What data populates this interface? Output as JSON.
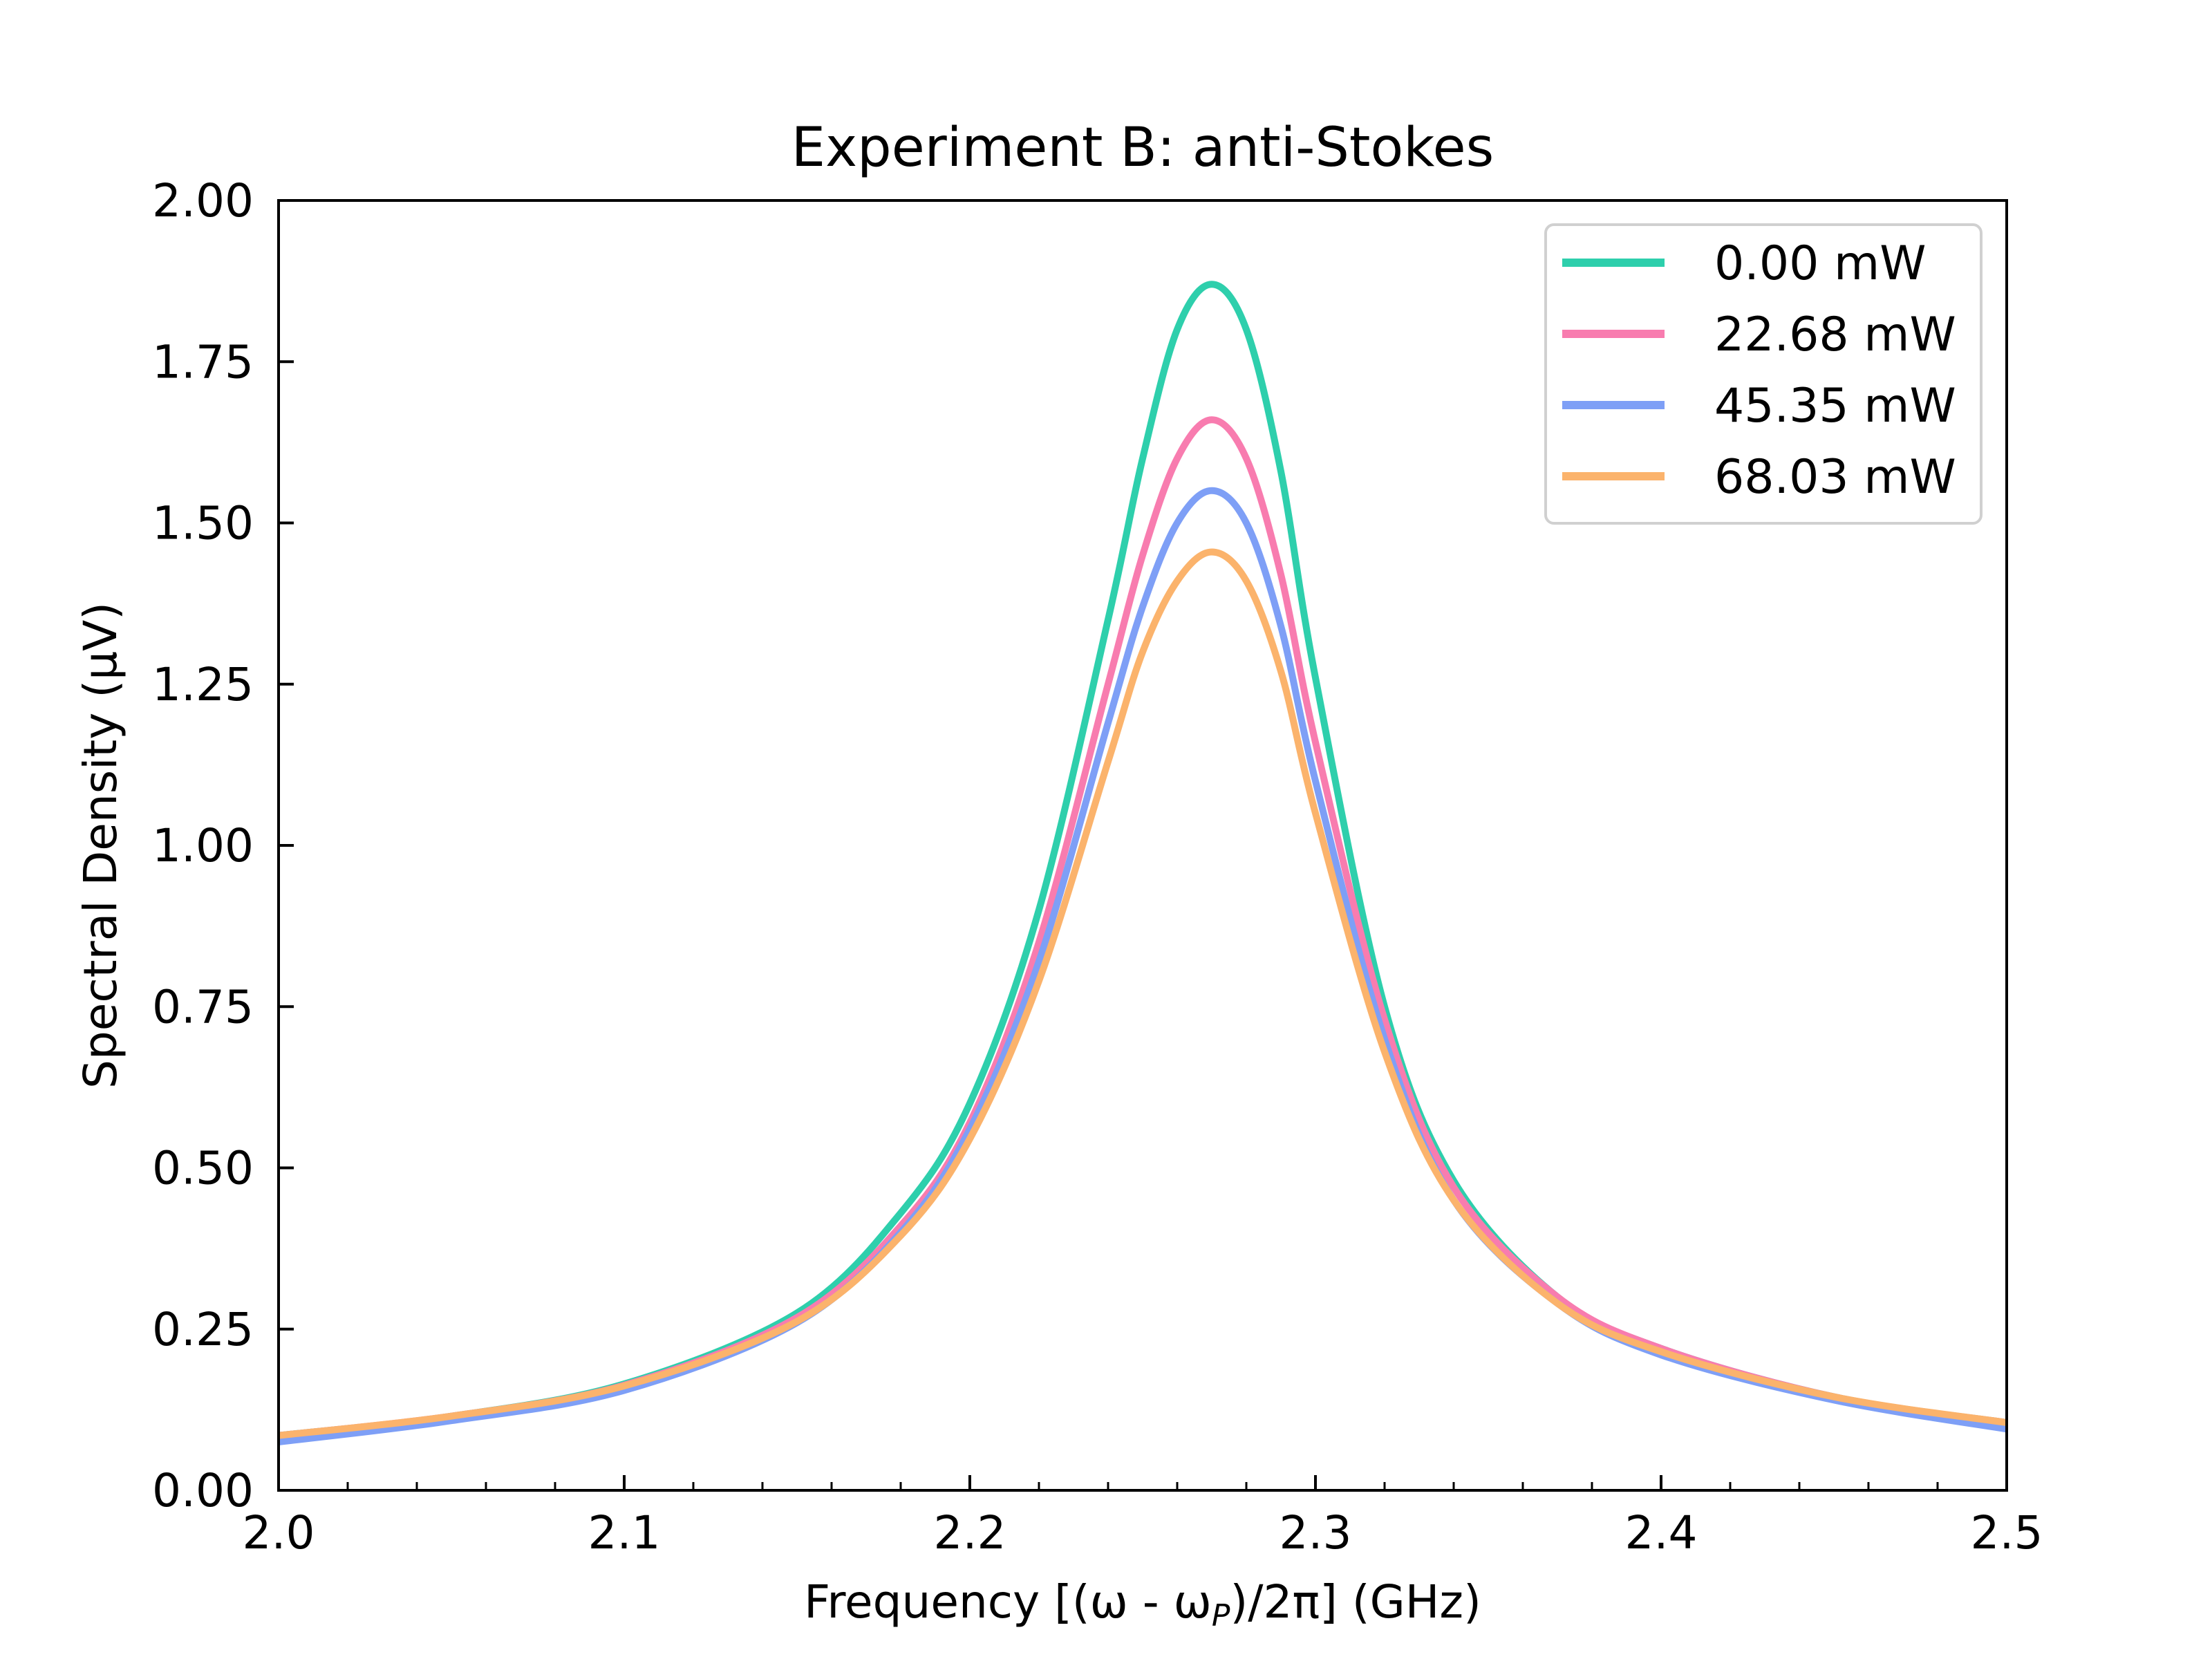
{
  "chart_data": {
    "type": "line",
    "title": "Experiment B: anti-Stokes",
    "xlabel": "Frequency [(ω - ω",
    "xlabel_sub": "P",
    "xlabel_tail": ")/2π] (GHz)",
    "ylabel": "Spectral Density (μV)",
    "xlim": [
      2.0,
      2.5
    ],
    "ylim": [
      0.0,
      2.0
    ],
    "xticks": [
      2.0,
      2.1,
      2.2,
      2.3,
      2.4,
      2.5
    ],
    "xtick_labels": [
      "2.0",
      "2.1",
      "2.2",
      "2.3",
      "2.4",
      "2.5"
    ],
    "yticks": [
      0.0,
      0.25,
      0.5,
      0.75,
      1.0,
      1.25,
      1.5,
      1.75,
      2.0
    ],
    "ytick_labels": [
      "0.00",
      "0.25",
      "0.50",
      "0.75",
      "1.00",
      "1.25",
      "1.50",
      "1.75",
      "2.00"
    ],
    "grid": false,
    "legend_position": "top-right",
    "x": [
      2.0,
      2.05,
      2.1,
      2.15,
      2.18,
      2.2,
      2.22,
      2.24,
      2.25,
      2.26,
      2.27,
      2.28,
      2.29,
      2.3,
      2.32,
      2.34,
      2.37,
      2.4,
      2.45,
      2.5
    ],
    "series": [
      {
        "name": "0.00 mW",
        "color": "#2ecfac",
        "values": [
          0.085,
          0.115,
          0.165,
          0.275,
          0.43,
          0.6,
          0.9,
          1.35,
          1.6,
          1.8,
          1.87,
          1.8,
          1.58,
          1.26,
          0.75,
          0.48,
          0.3,
          0.22,
          0.145,
          0.105
        ]
      },
      {
        "name": "22.68 mW",
        "color": "#f87caf",
        "values": [
          0.085,
          0.115,
          0.163,
          0.268,
          0.41,
          0.57,
          0.85,
          1.25,
          1.45,
          1.6,
          1.66,
          1.6,
          1.42,
          1.16,
          0.73,
          0.47,
          0.3,
          0.22,
          0.145,
          0.105
        ]
      },
      {
        "name": "45.35 mW",
        "color": "#7e9ff6",
        "values": [
          0.075,
          0.108,
          0.155,
          0.26,
          0.4,
          0.56,
          0.82,
          1.19,
          1.37,
          1.5,
          1.55,
          1.5,
          1.34,
          1.1,
          0.7,
          0.45,
          0.29,
          0.21,
          0.14,
          0.095
        ]
      },
      {
        "name": "68.03 mW",
        "color": "#fbb36c",
        "values": [
          0.085,
          0.115,
          0.162,
          0.262,
          0.395,
          0.545,
          0.79,
          1.13,
          1.3,
          1.41,
          1.455,
          1.41,
          1.27,
          1.05,
          0.68,
          0.45,
          0.29,
          0.215,
          0.145,
          0.105
        ]
      }
    ]
  }
}
